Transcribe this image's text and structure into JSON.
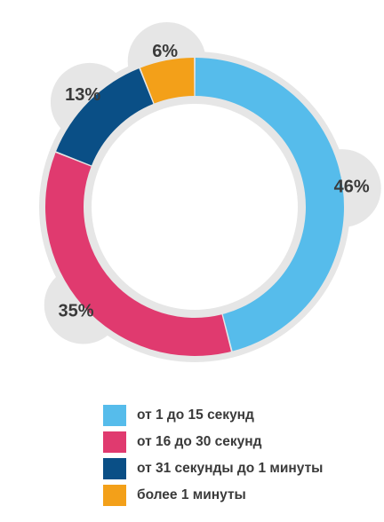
{
  "chart_data": {
    "type": "pie",
    "style": "donut",
    "categories": [
      "от 1 до 15 секунд",
      "от 16 до 30 секунд",
      "от 31 секунды до 1 минуты",
      "более 1 минуты"
    ],
    "values": [
      46,
      35,
      13,
      6
    ],
    "data_labels": [
      "46%",
      "35%",
      "13%",
      "6%"
    ],
    "colors": [
      "#56BCEB",
      "#E03A6F",
      "#0A4F86",
      "#F3A019"
    ],
    "legend_position": "bottom"
  }
}
